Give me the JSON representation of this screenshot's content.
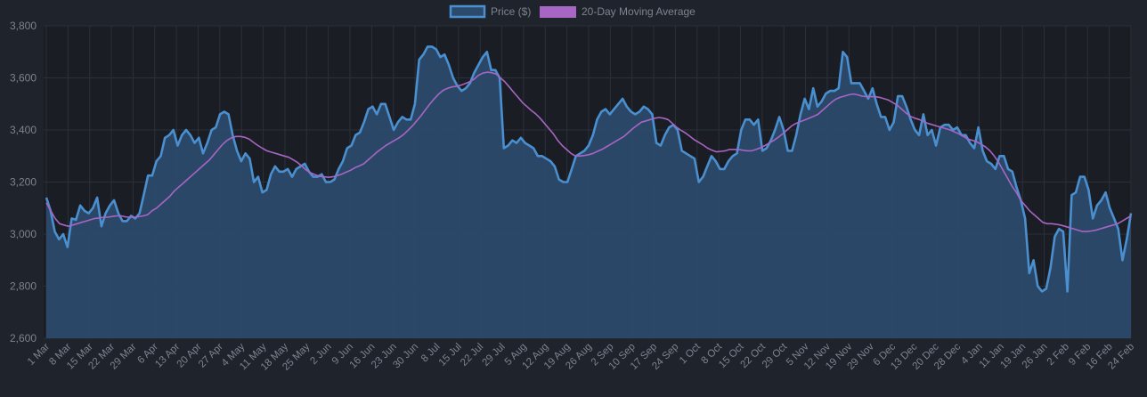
{
  "chart_data": {
    "type": "line",
    "legend": {
      "placement": "top-center",
      "items": [
        {
          "name": "Price ($)",
          "color": "#4a8fcf",
          "fill": "#2c4a6b"
        },
        {
          "name": "20-Day Moving Average",
          "color": "#a765c4",
          "fill": "#a765c4"
        }
      ]
    },
    "x_tick_labels": [
      "1 Mar",
      "8 Mar",
      "15 Mar",
      "22 Mar",
      "29 Mar",
      "6 Apr",
      "13 Apr",
      "20 Apr",
      "27 Apr",
      "4 May",
      "11 May",
      "18 May",
      "25 May",
      "2 Jun",
      "9 Jun",
      "16 Jun",
      "23 Jun",
      "30 Jun",
      "8 Jul",
      "15 Jul",
      "22 Jul",
      "29 Jul",
      "5 Aug",
      "12 Aug",
      "19 Aug",
      "26 Aug",
      "2 Sep",
      "10 Sep",
      "17 Sep",
      "24 Sep",
      "1 Oct",
      "8 Oct",
      "15 Oct",
      "22 Oct",
      "29 Oct",
      "5 Nov",
      "12 Nov",
      "19 Nov",
      "29 Nov",
      "6 Dec",
      "13 Dec",
      "20 Dec",
      "28 Dec",
      "4 Jan",
      "11 Jan",
      "19 Jan",
      "26 Jan",
      "2 Feb",
      "9 Feb",
      "16 Feb",
      "24 Feb"
    ],
    "yticks": [
      "2,600",
      "2,800",
      "3,000",
      "3,200",
      "3,400",
      "3,600",
      "3,800"
    ],
    "ylim": [
      2600,
      3800
    ],
    "grid": true,
    "series": [
      {
        "name": "Price ($)",
        "values": [
          3140,
          3090,
          3010,
          2980,
          3000,
          2950,
          3060,
          3055,
          3110,
          3090,
          3080,
          3100,
          3140,
          3030,
          3080,
          3110,
          3130,
          3080,
          3050,
          3050,
          3070,
          3060,
          3080,
          3150,
          3225,
          3225,
          3280,
          3300,
          3370,
          3380,
          3400,
          3340,
          3380,
          3400,
          3380,
          3350,
          3370,
          3310,
          3350,
          3400,
          3410,
          3460,
          3470,
          3460,
          3380,
          3320,
          3280,
          3310,
          3290,
          3200,
          3220,
          3160,
          3170,
          3230,
          3260,
          3240,
          3240,
          3250,
          3220,
          3250,
          3260,
          3270,
          3240,
          3220,
          3220,
          3230,
          3200,
          3200,
          3210,
          3250,
          3280,
          3330,
          3340,
          3380,
          3390,
          3430,
          3480,
          3490,
          3460,
          3500,
          3500,
          3450,
          3400,
          3430,
          3450,
          3440,
          3440,
          3500,
          3670,
          3690,
          3720,
          3720,
          3710,
          3680,
          3690,
          3650,
          3600,
          3570,
          3550,
          3560,
          3580,
          3620,
          3650,
          3680,
          3700,
          3630,
          3630,
          3600,
          3330,
          3340,
          3360,
          3350,
          3370,
          3350,
          3340,
          3330,
          3300,
          3300,
          3290,
          3280,
          3260,
          3210,
          3200,
          3200,
          3250,
          3300,
          3310,
          3320,
          3340,
          3380,
          3440,
          3470,
          3480,
          3460,
          3480,
          3500,
          3520,
          3490,
          3470,
          3460,
          3470,
          3490,
          3480,
          3460,
          3350,
          3340,
          3380,
          3410,
          3420,
          3400,
          3320,
          3310,
          3300,
          3290,
          3200,
          3220,
          3260,
          3300,
          3280,
          3250,
          3250,
          3280,
          3300,
          3310,
          3400,
          3440,
          3440,
          3420,
          3440,
          3320,
          3330,
          3360,
          3400,
          3450,
          3400,
          3320,
          3320,
          3380,
          3460,
          3520,
          3480,
          3560,
          3490,
          3510,
          3540,
          3550,
          3550,
          3560,
          3700,
          3680,
          3580,
          3580,
          3580,
          3550,
          3520,
          3560,
          3500,
          3450,
          3450,
          3400,
          3430,
          3530,
          3530,
          3490,
          3440,
          3400,
          3380,
          3460,
          3380,
          3400,
          3340,
          3410,
          3420,
          3420,
          3400,
          3410,
          3380,
          3380,
          3350,
          3330,
          3410,
          3320,
          3280,
          3270,
          3250,
          3300,
          3300,
          3250,
          3240,
          3180,
          3130,
          3060,
          2850,
          2900,
          2800,
          2780,
          2790,
          2870,
          2990,
          3020,
          3010,
          2780,
          3150,
          3160,
          3220,
          3220,
          3170,
          3060,
          3110,
          3130,
          3160,
          3100,
          3060,
          3020,
          2900,
          2980,
          3080
        ]
      },
      {
        "name": "20-Day Moving Average",
        "values": [
          3120,
          3090,
          3060,
          3040,
          3035,
          3030,
          3035,
          3040,
          3045,
          3050,
          3055,
          3060,
          3062,
          3065,
          3065,
          3068,
          3070,
          3070,
          3066,
          3065,
          3065,
          3067,
          3070,
          3075,
          3090,
          3100,
          3115,
          3130,
          3145,
          3165,
          3180,
          3195,
          3210,
          3225,
          3240,
          3255,
          3270,
          3285,
          3305,
          3325,
          3345,
          3360,
          3370,
          3375,
          3375,
          3372,
          3365,
          3352,
          3340,
          3330,
          3320,
          3315,
          3310,
          3305,
          3300,
          3295,
          3285,
          3275,
          3260,
          3245,
          3235,
          3228,
          3222,
          3220,
          3218,
          3220,
          3225,
          3230,
          3238,
          3245,
          3255,
          3262,
          3270,
          3285,
          3300,
          3315,
          3328,
          3340,
          3350,
          3360,
          3370,
          3382,
          3398,
          3415,
          3435,
          3455,
          3478,
          3500,
          3520,
          3538,
          3552,
          3560,
          3565,
          3568,
          3572,
          3578,
          3585,
          3595,
          3610,
          3618,
          3622,
          3620,
          3615,
          3600,
          3585,
          3565,
          3545,
          3525,
          3505,
          3490,
          3475,
          3462,
          3445,
          3425,
          3405,
          3385,
          3360,
          3340,
          3325,
          3310,
          3300,
          3300,
          3302,
          3305,
          3310,
          3318,
          3325,
          3335,
          3345,
          3355,
          3365,
          3375,
          3390,
          3405,
          3418,
          3430,
          3435,
          3440,
          3445,
          3448,
          3445,
          3440,
          3425,
          3410,
          3398,
          3388,
          3375,
          3362,
          3352,
          3342,
          3330,
          3322,
          3316,
          3318,
          3320,
          3325,
          3325,
          3325,
          3322,
          3320,
          3320,
          3325,
          3332,
          3340,
          3350,
          3360,
          3372,
          3385,
          3400,
          3415,
          3425,
          3432,
          3438,
          3445,
          3452,
          3460,
          3475,
          3490,
          3505,
          3518,
          3525,
          3530,
          3535,
          3538,
          3535,
          3530,
          3528,
          3528,
          3528,
          3525,
          3520,
          3515,
          3505,
          3495,
          3480,
          3465,
          3452,
          3445,
          3440,
          3432,
          3425,
          3420,
          3415,
          3410,
          3405,
          3400,
          3392,
          3385,
          3375,
          3365,
          3360,
          3355,
          3345,
          3335,
          3320,
          3300,
          3275,
          3245,
          3215,
          3185,
          3160,
          3130,
          3110,
          3090,
          3075,
          3060,
          3045,
          3040,
          3040,
          3038,
          3035,
          3030,
          3025,
          3020,
          3015,
          3010,
          3010,
          3012,
          3015,
          3020,
          3025,
          3030,
          3035,
          3040,
          3050,
          3060,
          3070
        ]
      }
    ]
  }
}
